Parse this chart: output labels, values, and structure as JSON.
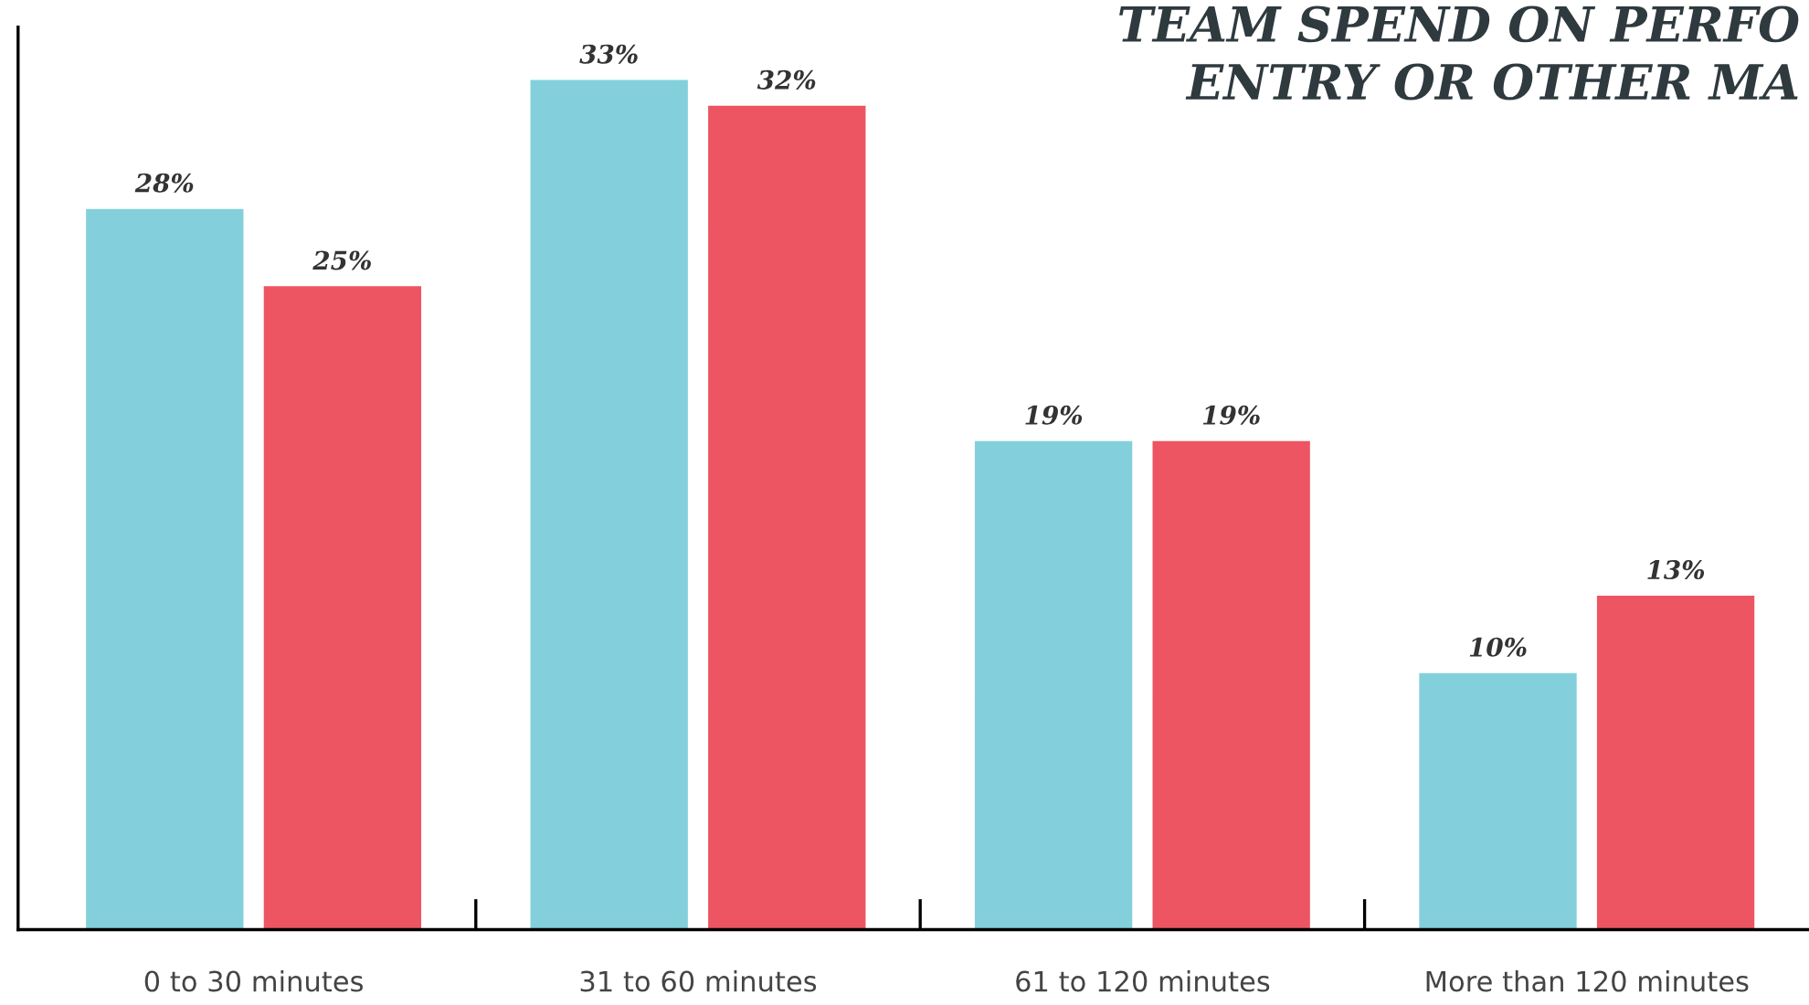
{
  "chart_data": {
    "type": "bar",
    "title": "TEAM SPEND ON PERFO\nENTRY OR OTHER MA",
    "categories": [
      "0 to 30 minutes",
      "31 to 60 minutes",
      "61 to 120 minutes",
      "More than 120 minutes"
    ],
    "series": [
      {
        "color": "#83d0dc",
        "values": [
          28,
          33,
          19,
          10
        ],
        "value_labels": [
          "28%",
          "33%",
          "19%",
          "10%"
        ]
      },
      {
        "color": "#ec5561",
        "values": [
          25,
          32,
          19,
          13
        ],
        "value_labels": [
          "25%",
          "32%",
          "19%",
          "13%"
        ]
      }
    ],
    "ylim": [
      0,
      35
    ],
    "tick_labels": "x",
    "grid": false,
    "legend": false
  }
}
